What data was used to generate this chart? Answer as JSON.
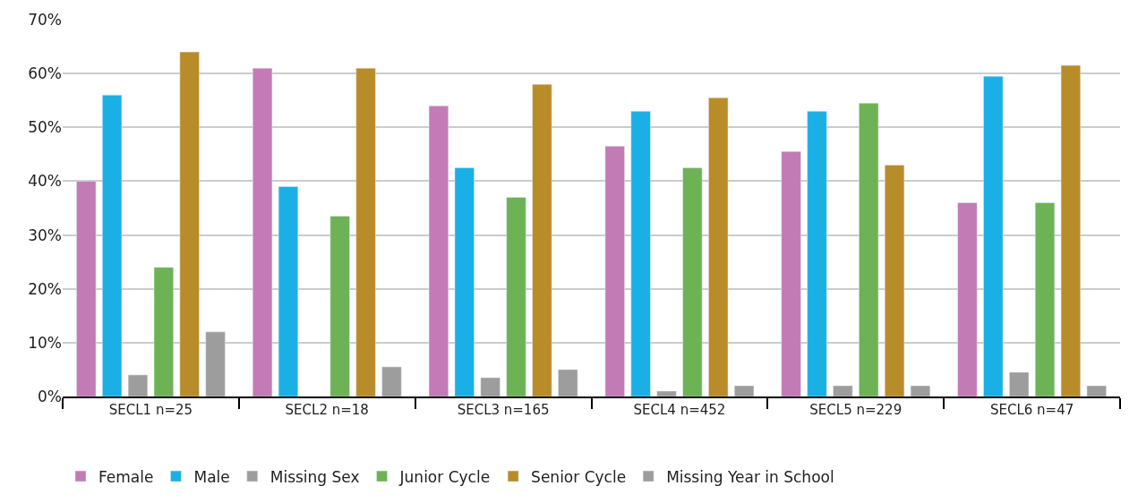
{
  "chart_data": {
    "type": "bar",
    "categories": [
      "SECL1 n=25",
      "SECL2 n=18",
      "SECL3 n=165",
      "SECL4 n=452",
      "SECL5 n=229",
      "SECL6 n=47"
    ],
    "series": [
      {
        "name": "Female",
        "color": "#c27bb5",
        "values": [
          40,
          61,
          54,
          46.5,
          45.5,
          36
        ]
      },
      {
        "name": "Male",
        "color": "#1ab0e6",
        "values": [
          56,
          39,
          42.5,
          53,
          53,
          59.5
        ]
      },
      {
        "name": "Missing Sex",
        "color": "#9d9d9d",
        "values": [
          4,
          null,
          3.5,
          1,
          2,
          4.5
        ]
      },
      {
        "name": "Junior Cycle",
        "color": "#6db356",
        "values": [
          24,
          33.5,
          37,
          42.5,
          54.5,
          36
        ]
      },
      {
        "name": "Senior Cycle",
        "color": "#b98c2a",
        "values": [
          64,
          61,
          58,
          55.5,
          43,
          61.5
        ]
      },
      {
        "name": "Missing Year in School",
        "color": "#9d9d9d",
        "values": [
          12,
          5.5,
          5,
          2,
          2,
          2
        ]
      }
    ],
    "ylim": [
      0,
      70
    ],
    "yticks": [
      {
        "value": 0,
        "label": "0%"
      },
      {
        "value": 10,
        "label": "10%"
      },
      {
        "value": 20,
        "label": "20%"
      },
      {
        "value": 30,
        "label": "30%"
      },
      {
        "value": 40,
        "label": "40%"
      },
      {
        "value": 50,
        "label": "50%"
      },
      {
        "value": 60,
        "label": "60%"
      },
      {
        "value": 70,
        "label": "70%"
      }
    ],
    "grid": "y",
    "legend": "bottom"
  }
}
